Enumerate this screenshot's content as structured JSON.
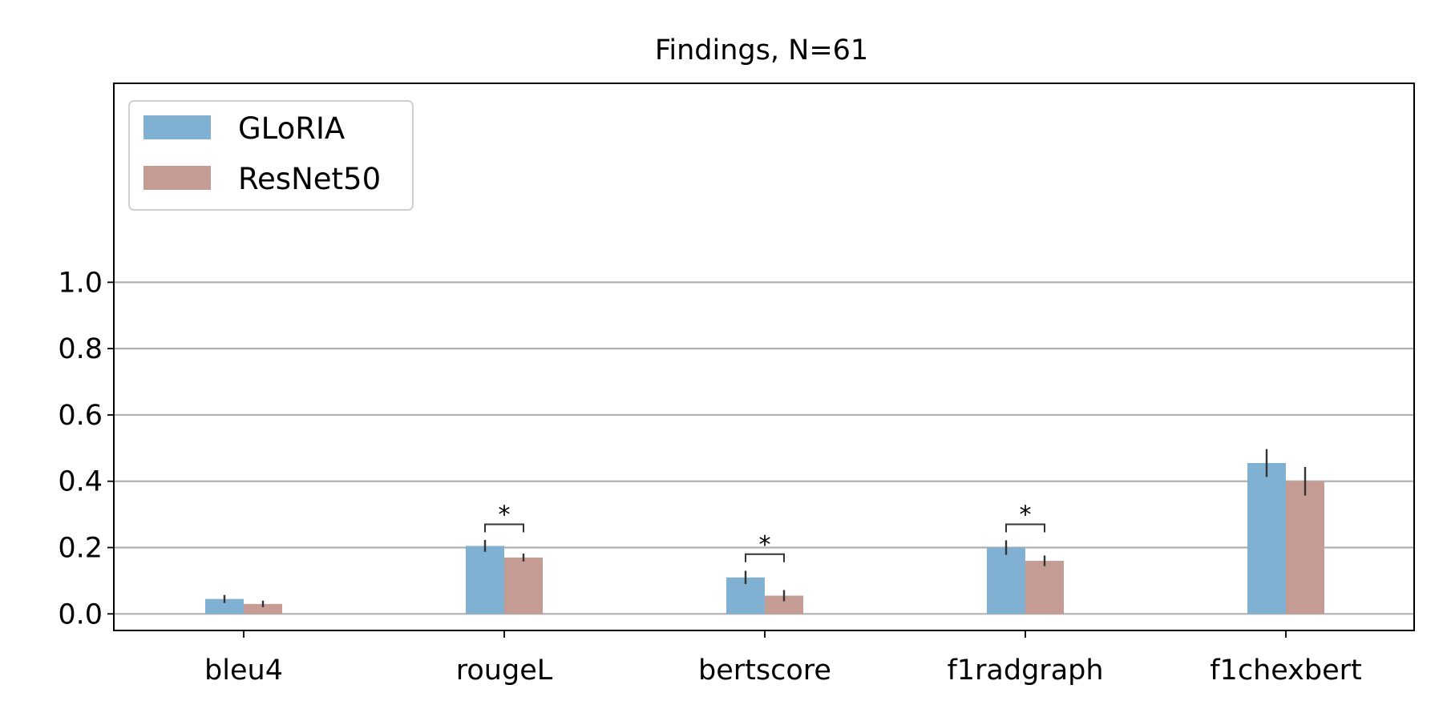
{
  "chart_data": {
    "type": "bar",
    "title": "Findings, N=61",
    "xlabel": "",
    "ylabel": "",
    "categories": [
      "bleu4",
      "rougeL",
      "bertscore",
      "f1radgraph",
      "f1chexbert"
    ],
    "series": [
      {
        "name": "GLoRIA",
        "color": "#80b1d3",
        "values": [
          0.045,
          0.205,
          0.11,
          0.2,
          0.455
        ],
        "error": [
          0.012,
          0.018,
          0.02,
          0.022,
          0.042
        ]
      },
      {
        "name": "ResNet50",
        "color": "#c49c94",
        "values": [
          0.03,
          0.17,
          0.055,
          0.16,
          0.4
        ],
        "error": [
          0.01,
          0.012,
          0.017,
          0.016,
          0.043
        ]
      }
    ],
    "ylim": [
      -0.05,
      1.6
    ],
    "yticks": [
      "0.0",
      "0.2",
      "0.4",
      "0.6",
      "0.8",
      "1.0"
    ],
    "grid": "horizontal",
    "legend_position": "upper-left",
    "significance": [
      {
        "category": "rougeL",
        "label": "*",
        "bracket_y": 0.27
      },
      {
        "category": "bertscore",
        "label": "*",
        "bracket_y": 0.18
      },
      {
        "category": "f1radgraph",
        "label": "*",
        "bracket_y": 0.27
      }
    ]
  }
}
